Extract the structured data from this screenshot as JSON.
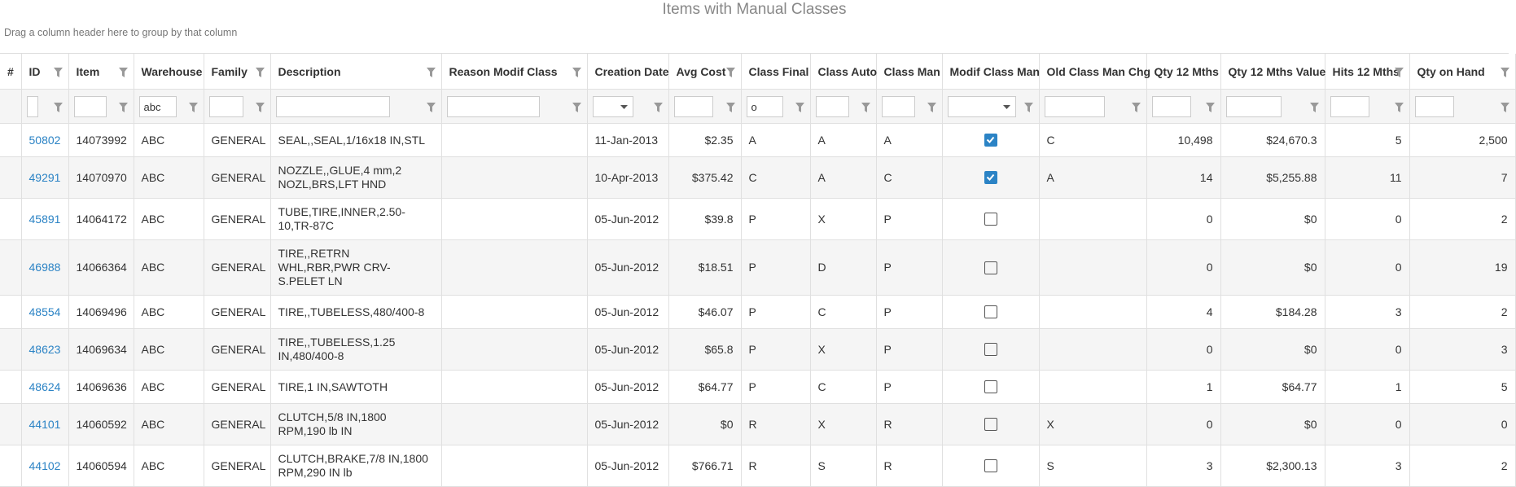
{
  "header": {
    "title": "Items with Manual Classes",
    "group_hint": "Drag a column header here to group by that column"
  },
  "table": {
    "columns": [
      "#",
      "ID",
      "Item",
      "Warehouse",
      "Family",
      "Description",
      "Reason Modif Class",
      "Creation Date",
      "Avg Cost",
      "Class Final",
      "Class Auto",
      "Class Man",
      "Modif Class Man",
      "Old Class Man Chg",
      "Qty 12 Mths",
      "Qty 12 Mths Value",
      "Hits 12 Mths",
      "Qty on Hand"
    ],
    "filters": [
      null,
      null,
      null,
      "abc",
      null,
      null,
      null,
      null,
      null,
      "o",
      null,
      null,
      null,
      null,
      null,
      null,
      null,
      null
    ],
    "rows": [
      {
        "cells": [
          null,
          "50802",
          "14073992",
          "ABC",
          "GENERAL",
          "SEAL,,SEAL,1/16x18 IN,STL",
          null,
          "11-Jan-2013",
          "$2.35",
          "A",
          "A",
          "A",
          true,
          "C",
          "10,498",
          "$24,670.3",
          "5",
          "2,500"
        ]
      },
      {
        "cells": [
          null,
          "49291",
          "14070970",
          "ABC",
          "GENERAL",
          "NOZZLE,,GLUE,4 mm,2 NOZL,BRS,LFT HND",
          null,
          "10-Apr-2013",
          "$375.42",
          "C",
          "A",
          "C",
          true,
          "A",
          "14",
          "$5,255.88",
          "11",
          "7"
        ]
      },
      {
        "cells": [
          null,
          "45891",
          "14064172",
          "ABC",
          "GENERAL",
          "TUBE,TIRE,INNER,2.50-10,TR-87C",
          null,
          "05-Jun-2012",
          "$39.8",
          "P",
          "X",
          "P",
          false,
          null,
          "0",
          "$0",
          "0",
          "2"
        ]
      },
      {
        "cells": [
          null,
          "46988",
          "14066364",
          "ABC",
          "GENERAL",
          "TIRE,,RETRN WHL,RBR,PWR CRV-S.PELET LN",
          null,
          "05-Jun-2012",
          "$18.51",
          "P",
          "D",
          "P",
          false,
          null,
          "0",
          "$0",
          "0",
          "19"
        ]
      },
      {
        "cells": [
          null,
          "48554",
          "14069496",
          "ABC",
          "GENERAL",
          "TIRE,,TUBELESS,480/400-8",
          null,
          "05-Jun-2012",
          "$46.07",
          "P",
          "C",
          "P",
          false,
          null,
          "4",
          "$184.28",
          "3",
          "2"
        ]
      },
      {
        "cells": [
          null,
          "48623",
          "14069634",
          "ABC",
          "GENERAL",
          "TIRE,,TUBELESS,1.25 IN,480/400-8",
          null,
          "05-Jun-2012",
          "$65.8",
          "P",
          "X",
          "P",
          false,
          null,
          "0",
          "$0",
          "0",
          "3"
        ]
      },
      {
        "cells": [
          null,
          "48624",
          "14069636",
          "ABC",
          "GENERAL",
          "TIRE,1 IN,SAWTOTH",
          null,
          "05-Jun-2012",
          "$64.77",
          "P",
          "C",
          "P",
          false,
          null,
          "1",
          "$64.77",
          "1",
          "5"
        ]
      },
      {
        "cells": [
          null,
          "44101",
          "14060592",
          "ABC",
          "GENERAL",
          "CLUTCH,5/8 IN,1800 RPM,190 lb IN",
          null,
          "05-Jun-2012",
          "$0",
          "R",
          "X",
          "R",
          false,
          "X",
          "0",
          "$0",
          "0",
          "0"
        ]
      },
      {
        "cells": [
          null,
          "44102",
          "14060594",
          "ABC",
          "GENERAL",
          "CLUTCH,BRAKE,7/8 IN,1800 RPM,290 IN lb",
          null,
          "05-Jun-2012",
          "$766.71",
          "R",
          "S",
          "R",
          false,
          "S",
          "3",
          "$2,300.13",
          "3",
          "2"
        ]
      }
    ]
  }
}
